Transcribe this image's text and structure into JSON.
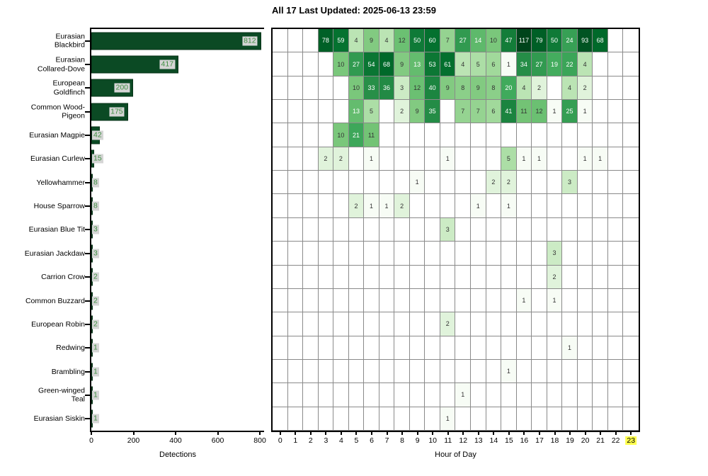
{
  "title": "All 17 Last Updated: 2025-06-13 23:59",
  "colors": {
    "bar_fill": "#0b4a24",
    "value_label_bg": "#d5d5d5",
    "value_label_text": "#3f8e42",
    "gridline": "#8a8a8a",
    "hour_highlight_bg": "#ffff4d",
    "heat_dark_text": "#ffffff",
    "heat_light_text": "#333333"
  },
  "chart_data": [
    {
      "type": "bar",
      "orientation": "horizontal",
      "title": "All 17 Last Updated: 2025-06-13 23:59",
      "xlabel": "Detections",
      "xticks": [
        0,
        200,
        400,
        600,
        800
      ],
      "xlim": [
        0,
        820
      ],
      "categories": [
        "Eurasian Blackbird",
        "Eurasian Collared-Dove",
        "European Goldfinch",
        "Common Wood-Pigeon",
        "Eurasian Magpie",
        "Eurasian Curlew",
        "Yellowhammer",
        "House Sparrow",
        "Eurasian Blue Tit",
        "Eurasian Jackdaw",
        "Carrion Crow",
        "Common Buzzard",
        "European Robin",
        "Redwing",
        "Brambling",
        "Green-winged Teal",
        "Eurasian Siskin"
      ],
      "category_labels": [
        "Eurasian\nBlackbird",
        "Eurasian\nCollared-Dove",
        "European\nGoldfinch",
        "Common Wood-\nPigeon",
        "Eurasian Magpie",
        "Eurasian Curlew",
        "Yellowhammer",
        "House Sparrow",
        "Eurasian Blue Tit",
        "Eurasian Jackdaw",
        "Carrion Crow",
        "Common Buzzard",
        "European Robin",
        "Redwing",
        "Brambling",
        "Green-winged\nTeal",
        "Eurasian Siskin"
      ],
      "values": [
        812,
        417,
        200,
        175,
        42,
        15,
        8,
        8,
        3,
        3,
        2,
        2,
        2,
        1,
        1,
        1,
        1
      ]
    },
    {
      "type": "heatmap",
      "xlabel": "Hour of Day",
      "x": [
        0,
        1,
        2,
        3,
        4,
        5,
        6,
        7,
        8,
        9,
        10,
        11,
        12,
        13,
        14,
        15,
        16,
        17,
        18,
        19,
        20,
        21,
        22,
        23
      ],
      "highlighted_x": 23,
      "colormap": "Greens",
      "color_scale": "log",
      "color_max": 117,
      "categories": [
        "Eurasian Blackbird",
        "Eurasian Collared-Dove",
        "European Goldfinch",
        "Common Wood-Pigeon",
        "Eurasian Magpie",
        "Eurasian Curlew",
        "Yellowhammer",
        "House Sparrow",
        "Eurasian Blue Tit",
        "Eurasian Jackdaw",
        "Carrion Crow",
        "Common Buzzard",
        "European Robin",
        "Redwing",
        "Brambling",
        "Green-winged Teal",
        "Eurasian Siskin"
      ],
      "matrix": [
        [
          null,
          null,
          null,
          78,
          59,
          4,
          9,
          4,
          12,
          50,
          60,
          7,
          27,
          14,
          10,
          47,
          117,
          79,
          50,
          24,
          93,
          68,
          null,
          null
        ],
        [
          null,
          null,
          null,
          null,
          10,
          27,
          54,
          68,
          9,
          13,
          53,
          61,
          4,
          5,
          6,
          1,
          34,
          27,
          19,
          22,
          4,
          null,
          null,
          null
        ],
        [
          null,
          null,
          null,
          null,
          null,
          10,
          33,
          36,
          3,
          12,
          40,
          9,
          8,
          9,
          8,
          20,
          4,
          2,
          null,
          4,
          2,
          null,
          null,
          null
        ],
        [
          null,
          null,
          null,
          null,
          null,
          13,
          5,
          null,
          2,
          9,
          35,
          null,
          7,
          7,
          6,
          41,
          11,
          12,
          1,
          25,
          1,
          null,
          null,
          null
        ],
        [
          null,
          null,
          null,
          null,
          10,
          21,
          11,
          null,
          null,
          null,
          null,
          null,
          null,
          null,
          null,
          null,
          null,
          null,
          null,
          null,
          null,
          null,
          null,
          null
        ],
        [
          null,
          null,
          null,
          2,
          2,
          null,
          1,
          null,
          null,
          null,
          null,
          1,
          null,
          null,
          null,
          5,
          1,
          1,
          null,
          null,
          1,
          1,
          null,
          null
        ],
        [
          null,
          null,
          null,
          null,
          null,
          null,
          null,
          null,
          null,
          1,
          null,
          null,
          null,
          null,
          2,
          2,
          null,
          null,
          null,
          3,
          null,
          null,
          null,
          null
        ],
        [
          null,
          null,
          null,
          null,
          null,
          2,
          1,
          1,
          2,
          null,
          null,
          null,
          null,
          1,
          null,
          1,
          null,
          null,
          null,
          null,
          null,
          null,
          null,
          null
        ],
        [
          null,
          null,
          null,
          null,
          null,
          null,
          null,
          null,
          null,
          null,
          null,
          3,
          null,
          null,
          null,
          null,
          null,
          null,
          null,
          null,
          null,
          null,
          null,
          null
        ],
        [
          null,
          null,
          null,
          null,
          null,
          null,
          null,
          null,
          null,
          null,
          null,
          null,
          null,
          null,
          null,
          null,
          null,
          null,
          3,
          null,
          null,
          null,
          null,
          null
        ],
        [
          null,
          null,
          null,
          null,
          null,
          null,
          null,
          null,
          null,
          null,
          null,
          null,
          null,
          null,
          null,
          null,
          null,
          null,
          2,
          null,
          null,
          null,
          null,
          null
        ],
        [
          null,
          null,
          null,
          null,
          null,
          null,
          null,
          null,
          null,
          null,
          null,
          null,
          null,
          null,
          null,
          null,
          1,
          null,
          1,
          null,
          null,
          null,
          null,
          null
        ],
        [
          null,
          null,
          null,
          null,
          null,
          null,
          null,
          null,
          null,
          null,
          null,
          2,
          null,
          null,
          null,
          null,
          null,
          null,
          null,
          null,
          null,
          null,
          null,
          null
        ],
        [
          null,
          null,
          null,
          null,
          null,
          null,
          null,
          null,
          null,
          null,
          null,
          null,
          null,
          null,
          null,
          null,
          null,
          null,
          null,
          1,
          null,
          null,
          null,
          null
        ],
        [
          null,
          null,
          null,
          null,
          null,
          null,
          null,
          null,
          null,
          null,
          null,
          null,
          null,
          null,
          null,
          1,
          null,
          null,
          null,
          null,
          null,
          null,
          null,
          null
        ],
        [
          null,
          null,
          null,
          null,
          null,
          null,
          null,
          null,
          null,
          null,
          null,
          null,
          1,
          null,
          null,
          null,
          null,
          null,
          null,
          null,
          null,
          null,
          null,
          null
        ],
        [
          null,
          null,
          null,
          null,
          null,
          null,
          null,
          null,
          null,
          null,
          null,
          1,
          null,
          null,
          null,
          null,
          null,
          null,
          null,
          null,
          null,
          null,
          null,
          null
        ]
      ]
    }
  ]
}
